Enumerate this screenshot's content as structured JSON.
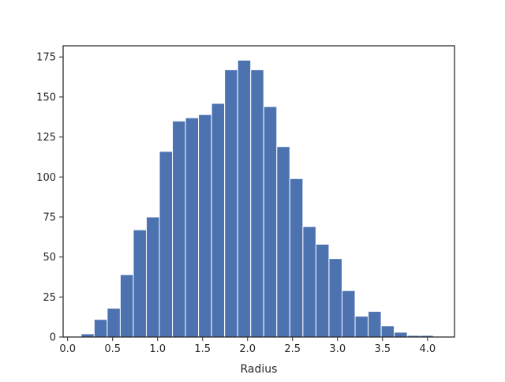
{
  "chart_data": {
    "type": "bar",
    "bar_style": "histogram",
    "xlabel": "Radius",
    "ylabel": "",
    "title": "",
    "xlim": [
      -0.05,
      4.3
    ],
    "ylim": [
      0,
      182
    ],
    "x_ticks": [
      0.0,
      0.5,
      1.0,
      1.5,
      2.0,
      2.5,
      3.0,
      3.5,
      4.0
    ],
    "x_tick_labels": [
      "0.0",
      "0.5",
      "1.0",
      "1.5",
      "2.0",
      "2.5",
      "3.0",
      "3.5",
      "4.0"
    ],
    "y_ticks": [
      0,
      25,
      50,
      75,
      100,
      125,
      150,
      175
    ],
    "y_tick_labels": [
      "0",
      "25",
      "50",
      "75",
      "100",
      "125",
      "150",
      "175"
    ],
    "bins": [
      {
        "x0": 0.15,
        "x1": 0.295,
        "count": 2
      },
      {
        "x0": 0.295,
        "x1": 0.44,
        "count": 11
      },
      {
        "x0": 0.44,
        "x1": 0.585,
        "count": 18
      },
      {
        "x0": 0.585,
        "x1": 0.73,
        "count": 39
      },
      {
        "x0": 0.73,
        "x1": 0.875,
        "count": 67
      },
      {
        "x0": 0.875,
        "x1": 1.02,
        "count": 75
      },
      {
        "x0": 1.02,
        "x1": 1.165,
        "count": 116
      },
      {
        "x0": 1.165,
        "x1": 1.31,
        "count": 135
      },
      {
        "x0": 1.31,
        "x1": 1.455,
        "count": 137
      },
      {
        "x0": 1.455,
        "x1": 1.6,
        "count": 139
      },
      {
        "x0": 1.6,
        "x1": 1.745,
        "count": 146
      },
      {
        "x0": 1.745,
        "x1": 1.89,
        "count": 167
      },
      {
        "x0": 1.89,
        "x1": 2.035,
        "count": 173
      },
      {
        "x0": 2.035,
        "x1": 2.18,
        "count": 167
      },
      {
        "x0": 2.18,
        "x1": 2.325,
        "count": 144
      },
      {
        "x0": 2.325,
        "x1": 2.47,
        "count": 119
      },
      {
        "x0": 2.47,
        "x1": 2.615,
        "count": 99
      },
      {
        "x0": 2.615,
        "x1": 2.76,
        "count": 69
      },
      {
        "x0": 2.76,
        "x1": 2.905,
        "count": 58
      },
      {
        "x0": 2.905,
        "x1": 3.05,
        "count": 49
      },
      {
        "x0": 3.05,
        "x1": 3.195,
        "count": 29
      },
      {
        "x0": 3.195,
        "x1": 3.34,
        "count": 13
      },
      {
        "x0": 3.34,
        "x1": 3.485,
        "count": 16
      },
      {
        "x0": 3.485,
        "x1": 3.63,
        "count": 7
      },
      {
        "x0": 3.63,
        "x1": 3.775,
        "count": 3
      },
      {
        "x0": 3.775,
        "x1": 3.92,
        "count": 1
      },
      {
        "x0": 3.92,
        "x1": 4.065,
        "count": 1
      }
    ],
    "bar_color": "#4c72b0",
    "edge_color": "#ffffff",
    "grid": false,
    "legend": "none"
  }
}
